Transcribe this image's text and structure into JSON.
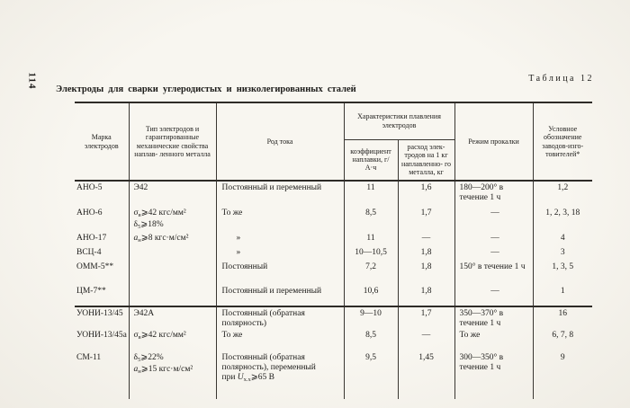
{
  "page": {
    "page_number": "114",
    "table_label": "Таблица 12",
    "title": "Электроды  для  сварки  углеродистых  и  низколегированных  сталей"
  },
  "colors": {
    "paper": "#f8f6f0",
    "ink": "#1d1c1a",
    "rule": "#3a3732"
  },
  "table": {
    "header": {
      "marka": "Марка электродов",
      "tip": "Тип электродов и гарантированные механические свойства наплав- ленного металла",
      "rod": "Род тока",
      "melting_group": "Характеристики плавления электродов",
      "koef": "коэффициент наплавки, г/А·ч",
      "rashod": "расход элек- тродов на 1 кг наплавленно- го металла, кг",
      "rezhim": "Режим прокалки",
      "uslov": "Условное обозначение заводов-изго- товителей*"
    },
    "group1": [
      {
        "marka": "АНО-5",
        "tip": "Э42",
        "rod": "Постоянный и переменный",
        "koef": "11",
        "rashod": "1,6",
        "rezhim": "180—200° в течение 1 ч",
        "uslov": "1,2"
      },
      {
        "marka": "АНО-6",
        "tip": "σ<sub>в</sub>⩾42 кгс/мм²<br>δ<sub>5</sub>⩾18%",
        "rod": "То же",
        "koef": "8,5",
        "rashod": "1,7",
        "rezhim": "—",
        "uslov": "1, 2, 3, 18"
      },
      {
        "marka": "АНО-17",
        "tip": "<i>a</i><sub>н</sub>⩾8 кгс·м/см²",
        "rod": "»",
        "koef": "11",
        "rashod": "—",
        "rezhim": "—",
        "uslov": "4"
      },
      {
        "marka": "ВСЦ-4",
        "tip": "",
        "rod": "»",
        "koef": "10—10,5",
        "rashod": "1,8",
        "rezhim": "—",
        "uslov": "3"
      },
      {
        "marka": "ОММ-5**",
        "tip": "",
        "rod": "Постоянный",
        "koef": "7,2",
        "rashod": "1,8",
        "rezhim": "150° в течение 1 ч",
        "uslov": "1, 3, 5"
      },
      {
        "marka": "ЦМ-7**",
        "tip": "",
        "rod": "Постоянный и переменный",
        "koef": "10,6",
        "rashod": "1,8",
        "rezhim": "—",
        "uslov": "1"
      }
    ],
    "group2": [
      {
        "marka": "УОНИ-13/45",
        "tip": "Э42А",
        "rod": "Постоянный (обратная полярность)",
        "koef": "9—10",
        "rashod": "1,7",
        "rezhim": "350—370° в течение 1 ч",
        "uslov": "16"
      },
      {
        "marka": "УОНИ-13/45а",
        "tip": "σ<sub>в</sub>⩾42 кгс/мм²",
        "rod": "То же",
        "koef": "8,5",
        "rashod": "—",
        "rezhim": "То же",
        "uslov": "6, 7, 8"
      },
      {
        "marka": "СМ-11",
        "tip": "δ<sub>5</sub>⩾22%<br><i>a</i><sub>н</sub>⩾15 кгс·м/см²",
        "rod": "Постоянный (обратная полярность), переменный при <i>U</i><sub>х.х</sub>⩾65 В",
        "koef": "9,5",
        "rashod": "1,45",
        "rezhim": "300—350° в течение 1 ч",
        "uslov": "9"
      }
    ]
  }
}
